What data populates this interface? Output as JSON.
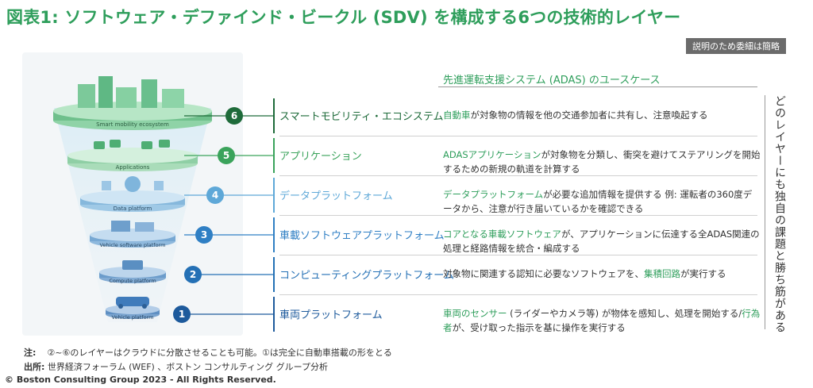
{
  "title": "図表1: ソフトウェア・デファインド・ビークル (SDV) を構成する6つの技術的レイヤー",
  "note_box": "説明のため委細は簡略",
  "adas_header": "先進運転支援システム (ADAS) のユースケース",
  "side_text": "どのレイヤーにも独自の課題と勝ち筋がある",
  "layers": [
    {
      "num": "6",
      "name": "スマートモビリティ・エコシステム",
      "color": "#1e6b3a",
      "illus_label": "Smart mobility ecosystem",
      "desc_hl": "自動車",
      "desc_rest": "が対象物の情報を他の交通参加者に共有し、注意喚起する"
    },
    {
      "num": "5",
      "name": "アプリケーション",
      "color": "#3aa35b",
      "illus_label": "Applications",
      "desc_hl": "ADASアプリケーション",
      "desc_rest": "が対象物を分類し、衝突を避けてステアリングを開始するための新規の軌道を計算する"
    },
    {
      "num": "4",
      "name": "データプラットフォーム",
      "color": "#5ea8d8",
      "illus_label": "Data platform",
      "desc_hl": "データプラットフォーム",
      "desc_rest": "が必要な追加情報を提供する 例: 運転者の360度データから、注意が行き届いているかを確認できる"
    },
    {
      "num": "3",
      "name": "車載ソフトウェアプラットフォーム",
      "color": "#2f7fc4",
      "illus_label": "Vehicle software platform",
      "desc_hl": "コアとなる車載ソフトウェア",
      "desc_rest": "が、アプリケーションに伝達する全ADAS関連の処理と経路情報を統合・編成する"
    },
    {
      "num": "2",
      "name": "コンピューティングプラットフォーム",
      "color": "#2470b5",
      "illus_label": "Compute platform",
      "desc_pre": "対象物に関連する認知に必要なソフトウェアを、",
      "desc_hl": "集積回路",
      "desc_rest": "が実行する"
    },
    {
      "num": "1",
      "name": "車両プラットフォーム",
      "color": "#1d5a9c",
      "illus_label": "Vehicle platform",
      "desc_hl": "車両のセンサー",
      "desc_rest": " (ライダーやカメラ等) が物体を感知し、処理を開始する/",
      "desc_hl2": "行為者",
      "desc_rest2": "が、受け取った指示を基に操作を実行する"
    }
  ],
  "footnote_label": "注:",
  "footnote_text": "②~⑥のレイヤーはクラウドに分散させることも可能。①は完全に自動車搭載の形をとる",
  "source_label": "出所:",
  "source_text": "世界経済フォーラム (WEF) 、ボストン コンサルティング グループ分析",
  "copyright": "© Boston Consulting Group 2023 - All Rights Reserved."
}
